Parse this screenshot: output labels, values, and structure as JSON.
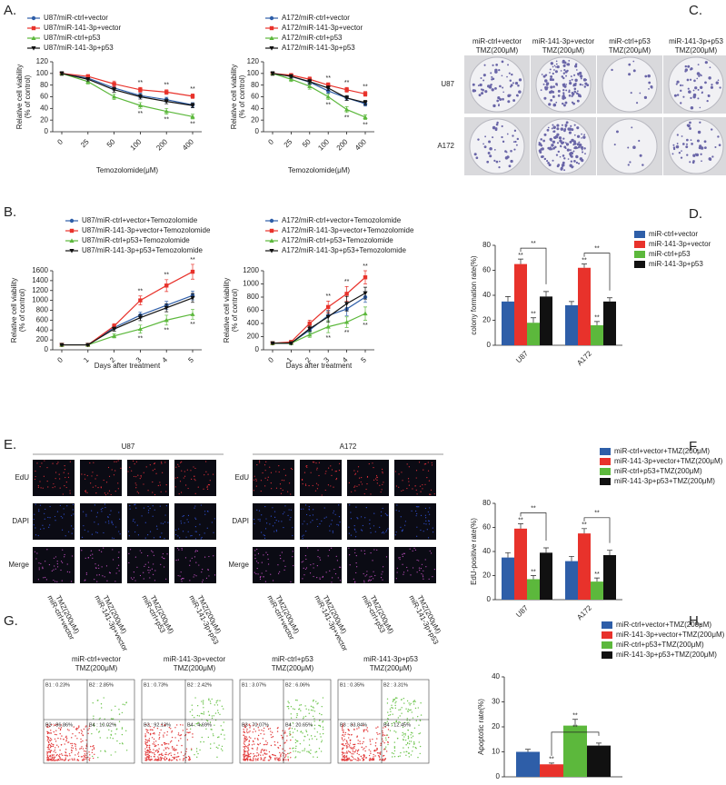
{
  "panels": {
    "letters": [
      "A.",
      "B.",
      "C.",
      "D.",
      "E.",
      "F.",
      "G.",
      "H."
    ],
    "colony": {
      "columns": [
        [
          "miR-ctrl+vector",
          "TMZ(200μM)"
        ],
        [
          "miR-141-3p+vector",
          "TMZ(200μM)"
        ],
        [
          "miR-ctrl+p53",
          "TMZ(200μM)"
        ],
        [
          "miR-141-3p+p53",
          "TMZ(200μM)"
        ]
      ],
      "rows": [
        "U87",
        "A172"
      ]
    },
    "edu": {
      "groups": [
        "U87",
        "A172"
      ],
      "rows": [
        "EdU",
        "DAPI",
        "Merge"
      ],
      "columns": [
        [
          "miR-ctrl+vector",
          "TMZ(200μM)"
        ],
        [
          "miR-141-3p+vector",
          "TMZ(200μM)"
        ],
        [
          "miR-ctrl+p53",
          "TMZ(200μM)"
        ],
        [
          "miR-141-3p+p53",
          "TMZ(200μM)"
        ]
      ]
    },
    "flow": {
      "titles": [
        [
          "miR-ctrl+vector",
          "TMZ(200μM)"
        ],
        [
          "miR-141-3p+vector",
          "TMZ(200μM)"
        ],
        [
          "miR-ctrl+p53",
          "TMZ(200μM)"
        ],
        [
          "miR-141-3p+p53",
          "TMZ(200μM)"
        ]
      ],
      "quadrants": [
        [
          "B1 : 0.23%",
          "B2 : 2.85%",
          "B3 : 86.86%",
          "B4 : 10.02%"
        ],
        [
          "B1 : 0.73%",
          "B2 : 2.42%",
          "B3 : 92.13%",
          "B4 : 4.69%"
        ],
        [
          "B1 : 3.07%",
          "B2 : 6.06%",
          "B3 : 70.07%",
          "B4 : 20.65%"
        ],
        [
          "B1 : 0.35%",
          "B2 : 3.31%",
          "B3 : 83.84%",
          "B4 : 12.45%"
        ]
      ]
    }
  },
  "chart_data": [
    {
      "type": "line",
      "categories": [
        "0",
        "25",
        "50",
        "100",
        "200",
        "400"
      ],
      "xlabel": "Temozolomide(μM)",
      "ylabel": [
        "Relative cell viability",
        "(% of control)"
      ],
      "ylim": [
        0,
        120
      ],
      "yticks": [
        0,
        20,
        40,
        60,
        80,
        100,
        120
      ],
      "series": [
        {
          "name": "U87/miR-ctrl+vector",
          "color": "#2e5ea8",
          "values": [
            100,
            92,
            75,
            62,
            55,
            46
          ],
          "errors": [
            3,
            3,
            4,
            4,
            4,
            4
          ]
        },
        {
          "name": "U87/miR-141-3p+vector",
          "color": "#e8322b",
          "values": [
            100,
            95,
            82,
            72,
            68,
            61
          ],
          "errors": [
            3,
            3,
            5,
            4,
            4,
            4
          ]
        },
        {
          "name": "U87/miR-ctrl+p53",
          "color": "#5cb83c",
          "values": [
            100,
            86,
            60,
            45,
            35,
            26
          ],
          "errors": [
            3,
            4,
            5,
            5,
            5,
            4
          ]
        },
        {
          "name": "U87/miR-141-3p+p53",
          "color": "#111111",
          "values": [
            100,
            90,
            72,
            60,
            52,
            45
          ],
          "errors": [
            3,
            3,
            4,
            4,
            4,
            4
          ]
        }
      ],
      "annotations": [
        {
          "text": "**",
          "series": 1,
          "index": 3
        },
        {
          "text": "**",
          "series": 1,
          "index": 4
        },
        {
          "text": "**",
          "series": 1,
          "index": 5
        },
        {
          "text": "**",
          "series": 2,
          "index": 3
        },
        {
          "text": "**",
          "series": 2,
          "index": 4
        },
        {
          "text": "**",
          "series": 2,
          "index": 5
        }
      ]
    },
    {
      "type": "line",
      "categories": [
        "0",
        "25",
        "50",
        "100",
        "200",
        "400"
      ],
      "xlabel": "Temozolomide(μM)",
      "ylabel": [
        "Relative cell viability",
        "(% of control)"
      ],
      "ylim": [
        0,
        120
      ],
      "yticks": [
        0,
        20,
        40,
        60,
        80,
        100,
        120
      ],
      "series": [
        {
          "name": "A172/miR-ctrl+vector",
          "color": "#2e5ea8",
          "values": [
            100,
            95,
            85,
            70,
            58,
            48
          ],
          "errors": [
            3,
            3,
            4,
            4,
            4,
            4
          ]
        },
        {
          "name": "A172/miR-141-3p+vector",
          "color": "#e8322b",
          "values": [
            100,
            97,
            90,
            80,
            72,
            65
          ],
          "errors": [
            3,
            3,
            4,
            4,
            4,
            4
          ]
        },
        {
          "name": "A172/miR-ctrl+p53",
          "color": "#5cb83c",
          "values": [
            100,
            90,
            78,
            60,
            38,
            25
          ],
          "errors": [
            3,
            4,
            5,
            5,
            5,
            4
          ]
        },
        {
          "name": "A172/miR-141-3p+p53",
          "color": "#111111",
          "values": [
            100,
            95,
            86,
            75,
            58,
            50
          ],
          "errors": [
            3,
            3,
            4,
            4,
            4,
            4
          ]
        }
      ],
      "annotations": [
        {
          "text": "**",
          "series": 1,
          "index": 3
        },
        {
          "text": "**",
          "series": 1,
          "index": 4
        },
        {
          "text": "**",
          "series": 1,
          "index": 5
        },
        {
          "text": "**",
          "series": 2,
          "index": 3
        },
        {
          "text": "**",
          "series": 2,
          "index": 4
        },
        {
          "text": "**",
          "series": 2,
          "index": 5
        }
      ]
    },
    {
      "type": "line",
      "categories": [
        "0",
        "1",
        "2",
        "3",
        "4",
        "5"
      ],
      "xlabel": "Days after treatment",
      "ylabel": [
        "Relative cell viability",
        "(% of control)"
      ],
      "ylim": [
        0,
        1600
      ],
      "yticks": [
        0,
        200,
        400,
        600,
        800,
        1000,
        1200,
        1400,
        1600
      ],
      "series": [
        {
          "name": "U87/miR-ctrl+vector+Temozolomide",
          "color": "#2e5ea8",
          "values": [
            100,
            100,
            450,
            700,
            900,
            1100
          ],
          "errors": [
            10,
            15,
            40,
            60,
            80,
            90
          ]
        },
        {
          "name": "U87/miR-141-3p+vector+Temozolomide",
          "color": "#e8322b",
          "values": [
            100,
            100,
            480,
            1000,
            1300,
            1580
          ],
          "errors": [
            10,
            15,
            50,
            90,
            120,
            150
          ]
        },
        {
          "name": "U87/miR-ctrl+p53+Temozolomide",
          "color": "#5cb83c",
          "values": [
            100,
            100,
            280,
            420,
            600,
            720
          ],
          "errors": [
            10,
            15,
            40,
            80,
            100,
            100
          ]
        },
        {
          "name": "U87/miR-141-3p+p53+Temozolomide",
          "color": "#111111",
          "values": [
            100,
            100,
            420,
            650,
            850,
            1050
          ],
          "errors": [
            10,
            15,
            40,
            60,
            80,
            90
          ]
        }
      ],
      "annotations": [
        {
          "text": "**",
          "series": 1,
          "index": 3
        },
        {
          "text": "**",
          "series": 1,
          "index": 4
        },
        {
          "text": "**",
          "series": 1,
          "index": 5
        },
        {
          "text": "**",
          "series": 2,
          "index": 3
        },
        {
          "text": "**",
          "series": 2,
          "index": 4
        },
        {
          "text": "**",
          "series": 2,
          "index": 5
        }
      ]
    },
    {
      "type": "line",
      "categories": [
        "0",
        "1",
        "2",
        "3",
        "4",
        "5"
      ],
      "xlabel": "Days after treatment",
      "ylabel": [
        "Relative cell viability",
        "(% of control)"
      ],
      "ylim": [
        0,
        1200
      ],
      "yticks": [
        0,
        200,
        400,
        600,
        800,
        1000,
        1200
      ],
      "series": [
        {
          "name": "A172/miR-ctrl+vector+Temozolomide",
          "color": "#2e5ea8",
          "values": [
            100,
            100,
            300,
            520,
            620,
            800
          ],
          "errors": [
            10,
            15,
            40,
            80,
            100,
            80
          ]
        },
        {
          "name": "A172/miR-141-3p+vector+Temozolomide",
          "color": "#e8322b",
          "values": [
            100,
            120,
            400,
            650,
            850,
            1100
          ],
          "errors": [
            10,
            15,
            50,
            90,
            110,
            100
          ]
        },
        {
          "name": "A172/miR-ctrl+p53+Temozolomide",
          "color": "#5cb83c",
          "values": [
            100,
            100,
            230,
            350,
            420,
            550
          ],
          "errors": [
            10,
            15,
            40,
            90,
            80,
            100
          ]
        },
        {
          "name": "A172/miR-141-3p+p53+Temozolomide",
          "color": "#111111",
          "values": [
            100,
            100,
            320,
            500,
            700,
            860
          ],
          "errors": [
            10,
            15,
            40,
            80,
            110,
            90
          ]
        }
      ],
      "annotations": [
        {
          "text": "**",
          "series": 1,
          "index": 3
        },
        {
          "text": "**",
          "series": 1,
          "index": 4
        },
        {
          "text": "**",
          "series": 1,
          "index": 5
        },
        {
          "text": "**",
          "series": 2,
          "index": 3
        },
        {
          "text": "**",
          "series": 2,
          "index": 4
        },
        {
          "text": "**",
          "series": 2,
          "index": 5
        }
      ]
    },
    {
      "type": "bar",
      "categories": [
        "U87",
        "A172"
      ],
      "ylabel": [
        "colony formation rate(%)"
      ],
      "ylim": [
        0,
        80
      ],
      "yticks": [
        0,
        20,
        40,
        60,
        80
      ],
      "series": [
        {
          "name": "miR-ctrl+vector",
          "color": "#2e5ea8",
          "values": [
            35,
            32
          ],
          "errors": [
            4,
            3
          ]
        },
        {
          "name": "miR-141-3p+vector",
          "color": "#e8322b",
          "values": [
            65,
            62
          ],
          "errors": [
            4,
            3
          ]
        },
        {
          "name": "miR-ctrl+p53",
          "color": "#5cb83c",
          "values": [
            18,
            16
          ],
          "errors": [
            4,
            3
          ]
        },
        {
          "name": "miR-141-3p+p53",
          "color": "#111111",
          "values": [
            39,
            35
          ],
          "errors": [
            4,
            3
          ]
        }
      ],
      "annotations": [
        {
          "text": "**",
          "series": 1,
          "index": 0
        },
        {
          "text": "**",
          "series": 2,
          "index": 0
        },
        {
          "text": "**",
          "series": 1,
          "index": 1
        },
        {
          "text": "**",
          "series": 2,
          "index": 1
        }
      ],
      "brackets": [
        {
          "text": "**",
          "from": [
            1,
            0
          ],
          "to": [
            3,
            0
          ]
        },
        {
          "text": "**",
          "from": [
            1,
            1
          ],
          "to": [
            3,
            1
          ]
        }
      ]
    },
    {
      "type": "bar",
      "categories": [
        "U87",
        "A172"
      ],
      "ylabel": [
        "EdU-positive rate(%)"
      ],
      "ylim": [
        0,
        80
      ],
      "yticks": [
        0,
        20,
        40,
        60,
        80
      ],
      "series": [
        {
          "name": "miR-ctrl+vector+TMZ(200μM)",
          "color": "#2e5ea8",
          "values": [
            35,
            32
          ],
          "errors": [
            4,
            4
          ]
        },
        {
          "name": "miR-141-3p+vector+TMZ(200μM)",
          "color": "#e8322b",
          "values": [
            59,
            55
          ],
          "errors": [
            4,
            4
          ]
        },
        {
          "name": "miR-ctrl+p53+TMZ(200μM)",
          "color": "#5cb83c",
          "values": [
            17,
            15
          ],
          "errors": [
            3,
            3
          ]
        },
        {
          "name": "miR-141-3p+p53+TMZ(200μM)",
          "color": "#111111",
          "values": [
            39,
            37
          ],
          "errors": [
            4,
            4
          ]
        }
      ],
      "annotations": [
        {
          "text": "**",
          "series": 1,
          "index": 0
        },
        {
          "text": "**",
          "series": 2,
          "index": 0
        },
        {
          "text": "**",
          "series": 1,
          "index": 1
        },
        {
          "text": "**",
          "series": 2,
          "index": 1
        }
      ],
      "brackets": [
        {
          "text": "**",
          "from": [
            1,
            0
          ],
          "to": [
            3,
            0
          ]
        },
        {
          "text": "**",
          "from": [
            1,
            1
          ],
          "to": [
            3,
            1
          ]
        }
      ]
    },
    {
      "type": "bar",
      "categories": [
        null
      ],
      "ylabel": [
        "Apoptotic rate(%)"
      ],
      "ylim": [
        0,
        40
      ],
      "yticks": [
        0,
        10,
        20,
        30,
        40
      ],
      "series": [
        {
          "name": "miR-ctrl+vector+TMZ(200μM)",
          "color": "#2e5ea8",
          "values": [
            10
          ],
          "errors": [
            1
          ]
        },
        {
          "name": "miR-141-3p+vector+TMZ(200μM)",
          "color": "#e8322b",
          "values": [
            5
          ],
          "errors": [
            0.5
          ]
        },
        {
          "name": "miR-ctrl+p53+TMZ(200μM)",
          "color": "#5cb83c",
          "values": [
            20.5
          ],
          "errors": [
            2.5
          ]
        },
        {
          "name": "miR-141-3p+p53+TMZ(200μM)",
          "color": "#111111",
          "values": [
            12.5
          ],
          "errors": [
            1
          ]
        }
      ],
      "annotations": [
        {
          "text": "**",
          "series": 1,
          "index": 0
        },
        {
          "text": "**",
          "series": 2,
          "index": 0
        }
      ],
      "brackets": [
        {
          "text": "**",
          "from": [
            1,
            0
          ],
          "to": [
            3,
            0
          ]
        }
      ]
    }
  ]
}
